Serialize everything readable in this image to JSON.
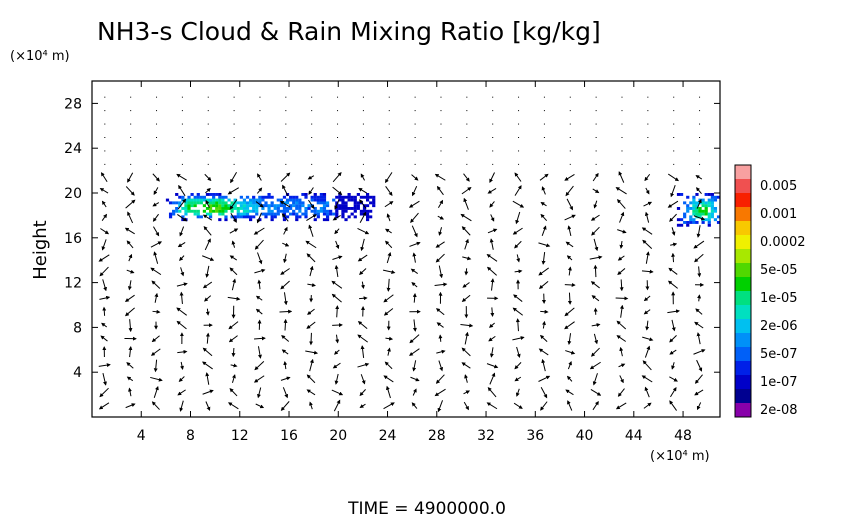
{
  "chart_data": {
    "type": "heatmap",
    "title": "NH3-s Cloud & Rain Mixing Ratio [kg/kg]",
    "ylabel": "Height",
    "xlabel": "",
    "x_unit": "(×10⁴ m)",
    "y_unit": "(×10⁴ m)",
    "xlim": [
      0,
      51
    ],
    "ylim": [
      0,
      30
    ],
    "x_ticks": [
      4,
      8,
      12,
      16,
      20,
      24,
      28,
      32,
      36,
      40,
      44,
      48
    ],
    "y_ticks": [
      4,
      8,
      12,
      16,
      20,
      24,
      28
    ],
    "time_label": "TIME  =  4900000.0",
    "colorbar": {
      "labels": [
        "0.005",
        "0.001",
        "0.0002",
        "5e-05",
        "1e-05",
        "2e-06",
        "5e-07",
        "1e-07",
        "2e-08"
      ],
      "colors": [
        "#f8a0a0",
        "#f05050",
        "#f82000",
        "#f87800",
        "#f8c800",
        "#f0f000",
        "#a8e800",
        "#50d800",
        "#00d000",
        "#00e080",
        "#00e0c0",
        "#00c0f0",
        "#0090f8",
        "#0060f8",
        "#0020e8",
        "#0000c8",
        "#000090",
        "#8800aa"
      ]
    },
    "cloud_regions": [
      {
        "x_range": [
          6,
          23
        ],
        "y_range": [
          17.5,
          19.8
        ],
        "description": "main cloud band"
      },
      {
        "x_range": [
          47.5,
          51
        ],
        "y_range": [
          17,
          19.8
        ],
        "description": "edge cloud band"
      }
    ]
  }
}
